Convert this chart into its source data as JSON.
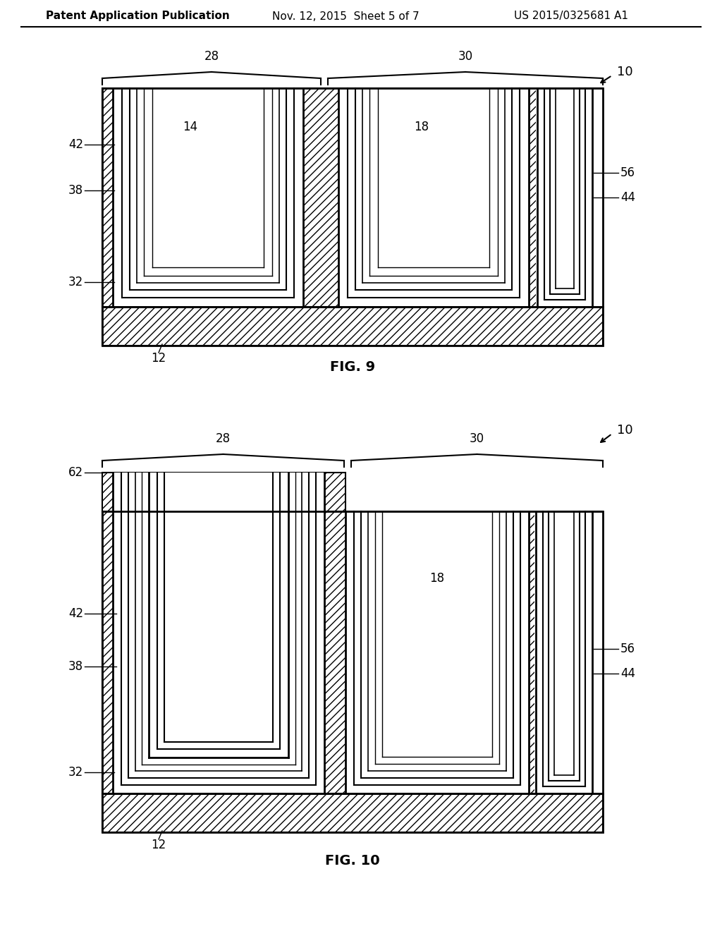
{
  "bg_color": "#ffffff",
  "header_left": "Patent Application Publication",
  "header_mid": "Nov. 12, 2015  Sheet 5 of 7",
  "header_right": "US 2015/0325681 A1",
  "fig9_label": "FIG. 9",
  "fig10_label": "FIG. 10",
  "line_color": "#000000",
  "fill_color": "#ffffff"
}
